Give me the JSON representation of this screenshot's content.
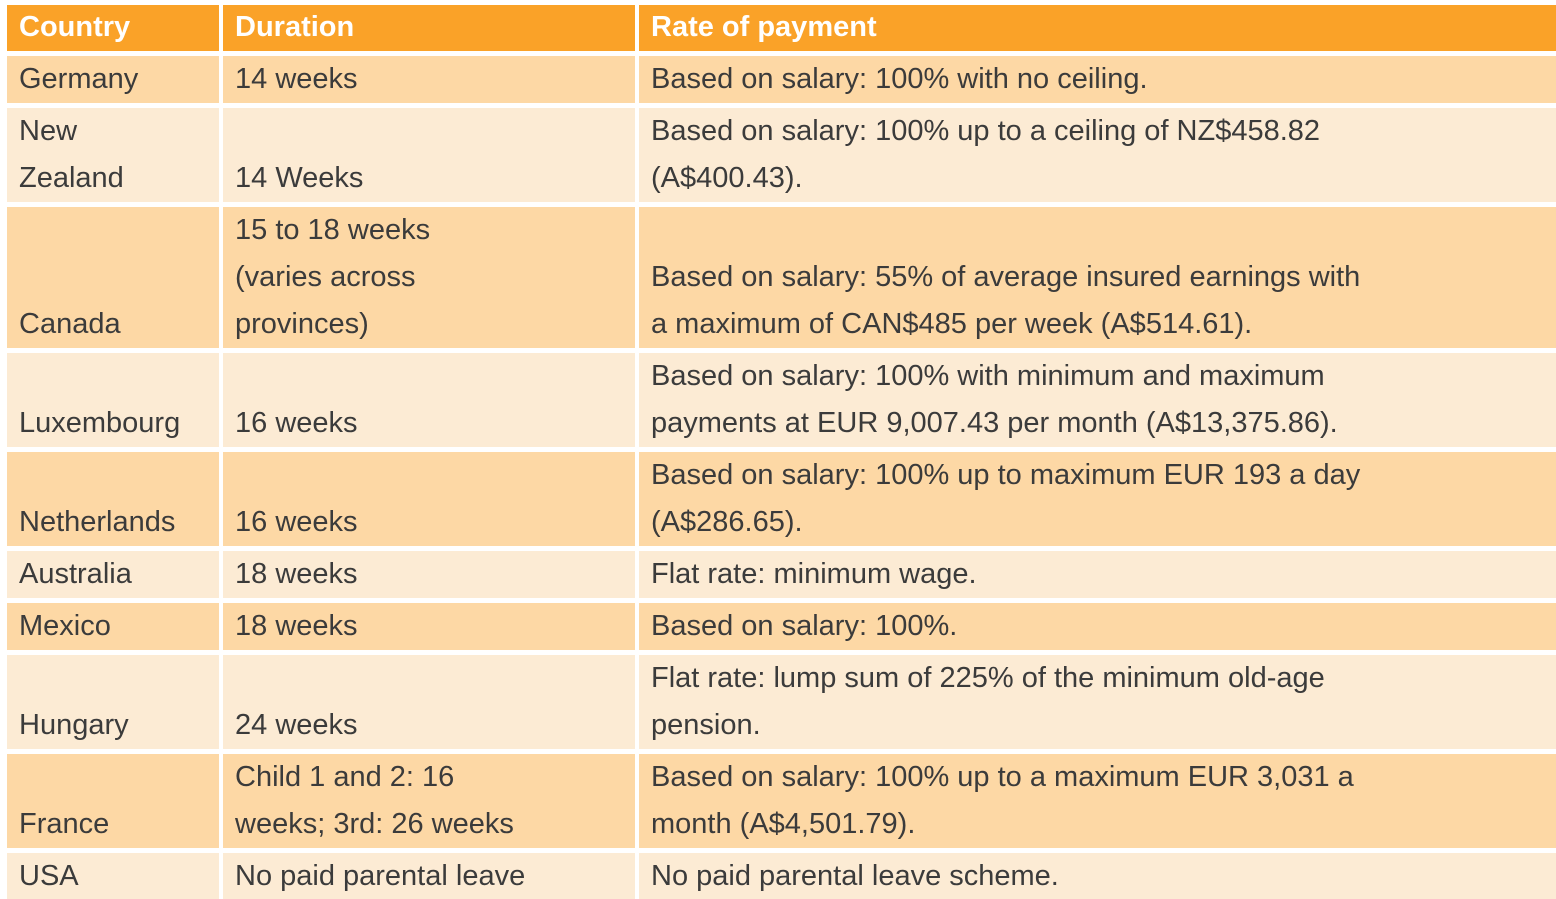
{
  "colors": {
    "header_bg": "#FAA228",
    "header_text": "#FFFFFF",
    "row_dark": "#FDD8A5",
    "row_light": "#FCEBD4",
    "body_text": "#3B3B3B",
    "grid_gap": "#FFFFFF"
  },
  "table": {
    "columns": [
      "Country",
      "Duration",
      "Rate of payment"
    ],
    "rows": [
      {
        "cells": [
          "Germany",
          "14 weeks",
          "Based on salary: 100% with no ceiling."
        ]
      },
      {
        "cells": [
          "New\nZealand",
          "14 Weeks",
          "Based on salary: 100% up to a ceiling of NZ$458.82\n(A$400.43)."
        ]
      },
      {
        "cells": [
          "Canada",
          "15 to 18 weeks\n(varies across\nprovinces)",
          "Based on salary: 55% of average insured earnings with\na maximum of CAN$485 per week (A$514.61)."
        ]
      },
      {
        "cells": [
          "Luxembourg",
          "16 weeks",
          "Based on salary: 100% with minimum and maximum\npayments at EUR 9,007.43 per month (A$13,375.86)."
        ]
      },
      {
        "cells": [
          "Netherlands",
          "16 weeks",
          "Based on salary: 100% up to maximum EUR 193 a day\n(A$286.65)."
        ]
      },
      {
        "cells": [
          "Australia",
          "18 weeks",
          "Flat rate: minimum wage."
        ]
      },
      {
        "cells": [
          "Mexico",
          "18 weeks",
          "Based on salary: 100%."
        ]
      },
      {
        "cells": [
          "Hungary",
          "24 weeks",
          "Flat rate: lump sum of 225% of the minimum old-age\npension."
        ]
      },
      {
        "cells": [
          "France",
          "Child 1 and 2: 16\nweeks; 3rd: 26 weeks",
          "Based on salary: 100% up to a maximum EUR 3,031 a\nmonth (A$4,501.79)."
        ]
      },
      {
        "cells": [
          "USA",
          "No paid parental leave",
          "No paid parental leave scheme."
        ]
      }
    ]
  }
}
